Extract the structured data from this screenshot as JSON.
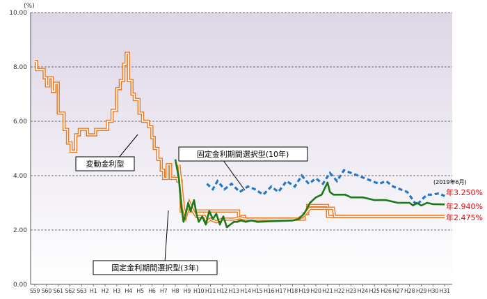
{
  "chart_data": {
    "type": "line",
    "y_unit": "(%)",
    "ylim": [
      0,
      10
    ],
    "y_ticks": [
      "0.00",
      "2.00",
      "4.00",
      "6.00",
      "8.00",
      "10.00"
    ],
    "categories": [
      "S59",
      "S60",
      "S61",
      "S62",
      "S63",
      "H1",
      "H2",
      "H3",
      "H4",
      "H5",
      "H6",
      "H7",
      "H8",
      "H9",
      "H10",
      "H11",
      "H12",
      "H13",
      "H14",
      "H15",
      "H16",
      "H17",
      "H18",
      "H19",
      "H20",
      "H21",
      "H22",
      "H23",
      "H24",
      "H25",
      "H26",
      "H27",
      "H28",
      "H29",
      "H30",
      "H31"
    ],
    "grid": "horizontal dashed",
    "series": [
      {
        "name": "変動金利型",
        "style": "double-line",
        "color": "#f07820",
        "points": [
          [
            0,
            8.2
          ],
          [
            0.15,
            8.2
          ],
          [
            0.15,
            7.9
          ],
          [
            0.8,
            7.9
          ],
          [
            0.8,
            7.6
          ],
          [
            1.0,
            7.6
          ],
          [
            1.0,
            7.3
          ],
          [
            1.2,
            7.3
          ],
          [
            1.2,
            7.6
          ],
          [
            1.5,
            7.6
          ],
          [
            1.5,
            7.1
          ],
          [
            1.7,
            7.1
          ],
          [
            1.7,
            7.4
          ],
          [
            2.0,
            7.4
          ],
          [
            2.0,
            6.3
          ],
          [
            2.5,
            6.3
          ],
          [
            2.5,
            5.7
          ],
          [
            2.8,
            5.7
          ],
          [
            2.8,
            5.2
          ],
          [
            3.1,
            5.2
          ],
          [
            3.1,
            4.9
          ],
          [
            3.5,
            4.9
          ],
          [
            3.5,
            5.5
          ],
          [
            3.8,
            5.5
          ],
          [
            3.8,
            5.7
          ],
          [
            4.5,
            5.7
          ],
          [
            4.5,
            5.5
          ],
          [
            5.2,
            5.5
          ],
          [
            5.2,
            5.7
          ],
          [
            6.2,
            5.7
          ],
          [
            6.2,
            6.0
          ],
          [
            6.6,
            6.0
          ],
          [
            6.6,
            6.4
          ],
          [
            7.0,
            6.4
          ],
          [
            7.0,
            7.2
          ],
          [
            7.3,
            7.2
          ],
          [
            7.3,
            7.5
          ],
          [
            7.6,
            7.5
          ],
          [
            7.6,
            8.1
          ],
          [
            7.8,
            8.1
          ],
          [
            7.8,
            8.5
          ],
          [
            8.0,
            8.5
          ],
          [
            8.0,
            7.5
          ],
          [
            8.3,
            7.5
          ],
          [
            8.3,
            7.0
          ],
          [
            8.5,
            7.0
          ],
          [
            8.5,
            6.8
          ],
          [
            8.9,
            6.8
          ],
          [
            8.9,
            6.3
          ],
          [
            9.2,
            6.3
          ],
          [
            9.2,
            6.0
          ],
          [
            9.7,
            6.0
          ],
          [
            9.7,
            5.8
          ],
          [
            10.0,
            5.8
          ],
          [
            10.0,
            5.4
          ],
          [
            10.2,
            5.4
          ],
          [
            10.2,
            5.0
          ],
          [
            10.5,
            5.0
          ],
          [
            10.5,
            4.6
          ],
          [
            10.8,
            4.6
          ],
          [
            10.8,
            4.2
          ],
          [
            11.0,
            4.2
          ],
          [
            11.0,
            3.9
          ],
          [
            11.3,
            3.9
          ],
          [
            11.3,
            4.4
          ],
          [
            11.6,
            4.4
          ],
          [
            11.6,
            3.9
          ],
          [
            12.2,
            3.9
          ],
          [
            12.2,
            3.8
          ],
          [
            12.5,
            3.8
          ],
          [
            12.5,
            2.7
          ],
          [
            17.4,
            2.7
          ],
          [
            17.4,
            2.4
          ],
          [
            17.7,
            2.4
          ],
          [
            17.7,
            2.5
          ],
          [
            17.9,
            2.5
          ],
          [
            17.9,
            2.4
          ],
          [
            23.0,
            2.4
          ],
          [
            23.0,
            2.6
          ],
          [
            23.3,
            2.6
          ],
          [
            23.3,
            2.9
          ],
          [
            25.0,
            2.9
          ],
          [
            25.0,
            2.5
          ],
          [
            35.0,
            2.5
          ]
        ]
      },
      {
        "name": "固定金利期間選択型(3年)",
        "style": "double-line",
        "color": "#f07820",
        "points": [
          [
            12.3,
            4.4
          ],
          [
            12.5,
            3.6
          ],
          [
            12.7,
            2.8
          ],
          [
            12.9,
            2.5
          ],
          [
            13.2,
            3.0
          ],
          [
            13.5,
            2.7
          ],
          [
            13.8,
            2.5
          ],
          [
            14.5,
            2.5
          ],
          [
            14.7,
            2.3
          ],
          [
            15.0,
            2.4
          ],
          [
            15.5,
            2.3
          ],
          [
            16.0,
            2.4
          ],
          [
            17.0,
            2.4
          ],
          [
            17.5,
            2.45
          ],
          [
            18.0,
            2.4
          ],
          [
            22.5,
            2.4
          ],
          [
            23.0,
            2.55
          ],
          [
            23.5,
            2.8
          ],
          [
            25.5,
            2.8
          ],
          [
            25.6,
            2.5
          ],
          [
            35.0,
            2.5
          ]
        ]
      },
      {
        "name": "固定金利期間選択型(10年)",
        "style": "dashed",
        "color": "#2277c8",
        "points": [
          [
            14.7,
            3.7
          ],
          [
            15.2,
            3.5
          ],
          [
            15.6,
            3.8
          ],
          [
            16.2,
            3.5
          ],
          [
            16.8,
            3.7
          ],
          [
            17.5,
            3.4
          ],
          [
            18.2,
            3.6
          ],
          [
            18.8,
            3.5
          ],
          [
            19.5,
            3.3
          ],
          [
            20.2,
            3.6
          ],
          [
            20.8,
            3.4
          ],
          [
            21.5,
            3.8
          ],
          [
            22.2,
            3.6
          ],
          [
            22.8,
            4.0
          ],
          [
            23.4,
            3.7
          ],
          [
            24.0,
            3.9
          ],
          [
            24.6,
            3.7
          ],
          [
            25.2,
            4.1
          ],
          [
            25.8,
            3.8
          ],
          [
            26.4,
            4.2
          ],
          [
            27.0,
            4.1
          ],
          [
            27.6,
            4.0
          ],
          [
            28.2,
            3.9
          ],
          [
            28.8,
            3.8
          ],
          [
            29.4,
            3.7
          ],
          [
            30.0,
            3.8
          ],
          [
            30.6,
            3.6
          ],
          [
            31.2,
            3.5
          ],
          [
            31.8,
            3.4
          ],
          [
            32.3,
            3.1
          ],
          [
            32.6,
            2.9
          ],
          [
            33.0,
            3.1
          ],
          [
            33.5,
            3.3
          ],
          [
            34.0,
            3.3
          ],
          [
            34.5,
            3.35
          ],
          [
            35.0,
            3.25
          ]
        ]
      },
      {
        "name": "固定金利期間選択型(3年)",
        "style": "solid",
        "color": "#1a7a1a",
        "points": [
          [
            12.0,
            4.6
          ],
          [
            12.3,
            3.9
          ],
          [
            12.5,
            2.9
          ],
          [
            12.7,
            2.3
          ],
          [
            12.9,
            2.6
          ],
          [
            13.1,
            3.0
          ],
          [
            13.3,
            2.7
          ],
          [
            13.6,
            3.1
          ],
          [
            13.8,
            2.6
          ],
          [
            14.0,
            2.3
          ],
          [
            14.3,
            2.5
          ],
          [
            14.6,
            2.2
          ],
          [
            14.9,
            2.7
          ],
          [
            15.2,
            2.4
          ],
          [
            15.5,
            2.6
          ],
          [
            15.8,
            2.2
          ],
          [
            16.1,
            2.5
          ],
          [
            16.4,
            2.1
          ],
          [
            16.7,
            2.2
          ],
          [
            17.0,
            2.3
          ],
          [
            17.3,
            2.3
          ],
          [
            17.6,
            2.35
          ],
          [
            18.0,
            2.3
          ],
          [
            18.5,
            2.35
          ],
          [
            19.0,
            2.3
          ],
          [
            22.0,
            2.35
          ],
          [
            22.5,
            2.4
          ],
          [
            23.0,
            2.6
          ],
          [
            23.5,
            3.0
          ],
          [
            24.0,
            3.2
          ],
          [
            24.5,
            3.3
          ],
          [
            25.0,
            3.75
          ],
          [
            25.2,
            3.4
          ],
          [
            25.5,
            3.3
          ],
          [
            26.0,
            3.3
          ],
          [
            26.5,
            3.3
          ],
          [
            27.0,
            3.2
          ],
          [
            28.0,
            3.2
          ],
          [
            29.0,
            3.1
          ],
          [
            30.0,
            3.1
          ],
          [
            31.0,
            3.0
          ],
          [
            32.0,
            3.0
          ],
          [
            32.3,
            2.9
          ],
          [
            32.6,
            3.0
          ],
          [
            33.0,
            2.9
          ],
          [
            33.5,
            3.0
          ],
          [
            34.0,
            2.95
          ],
          [
            35.0,
            2.94
          ]
        ]
      }
    ],
    "annotations": {
      "hendou": "変動金利型",
      "fixed10": "固定金利期間選択型(10年)",
      "fixed3": "固定金利期間選択型(3年)",
      "date": "(2019年6月)",
      "end10": "年3.250%",
      "end3": "年2.940%",
      "endHendou": "年2.475%"
    },
    "colors": {
      "orange": "#f07820",
      "green": "#1a7a1a",
      "blue": "#2277c8",
      "red": "#e60000"
    }
  }
}
